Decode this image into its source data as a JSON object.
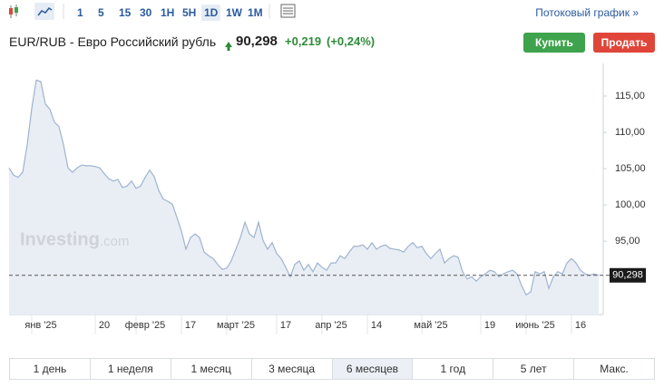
{
  "toolbar": {
    "intervals": [
      "1",
      "5",
      "15",
      "30",
      "1H",
      "5H",
      "1D",
      "1W",
      "1M"
    ],
    "selected_interval": 6,
    "streaming": "Потоковый график »"
  },
  "header": {
    "symbol": "EUR/RUB - Евро Российский рубль",
    "price": "90,298",
    "change": "+0,219",
    "change_pct": "(+0,24%)",
    "buy": "Купить",
    "sell": "Продать"
  },
  "chart_data": {
    "type": "area",
    "watermark_main": "Investing",
    "watermark_suffix": ".com",
    "categories": [
      null,
      null,
      null,
      null,
      null,
      null,
      null,
      "янв '25",
      null,
      null,
      null,
      null,
      null,
      null,
      null,
      null,
      null,
      null,
      null,
      null,
      null,
      "20",
      null,
      null,
      null,
      null,
      null,
      null,
      null,
      null,
      "февр '25",
      null,
      null,
      null,
      null,
      null,
      null,
      null,
      null,
      null,
      "17",
      null,
      null,
      null,
      null,
      null,
      null,
      null,
      null,
      null,
      "март '25",
      null,
      null,
      null,
      null,
      null,
      null,
      null,
      null,
      null,
      null,
      "17",
      null,
      null,
      null,
      null,
      null,
      null,
      null,
      null,
      null,
      "апр '25",
      null,
      null,
      null,
      null,
      null,
      null,
      null,
      null,
      null,
      "14",
      null,
      null,
      null,
      null,
      null,
      null,
      null,
      null,
      null,
      null,
      null,
      "май '25",
      null,
      null,
      null,
      null,
      null,
      null,
      null,
      null,
      null,
      null,
      null,
      null,
      "19",
      null,
      null,
      null,
      null,
      null,
      null,
      null,
      null,
      null,
      "июнь '25",
      null,
      null,
      null,
      null,
      null,
      null,
      null,
      null,
      null,
      "16",
      null,
      null,
      null,
      null
    ],
    "values": [
      105.1,
      104.1,
      103.8,
      104.5,
      108.3,
      113.3,
      117.2,
      117.0,
      113.9,
      113.2,
      111.4,
      110.8,
      108.3,
      105.1,
      104.5,
      105.1,
      105.5,
      105.4,
      105.4,
      105.3,
      105.1,
      104.3,
      103.6,
      103.3,
      103.5,
      102.4,
      102.6,
      103.3,
      102.3,
      102.6,
      103.8,
      104.8,
      103.9,
      102.0,
      100.8,
      100.5,
      100.1,
      98.3,
      96.4,
      93.9,
      95.5,
      96.0,
      95.5,
      93.5,
      93.0,
      92.6,
      91.8,
      91.1,
      91.3,
      92.3,
      93.9,
      95.5,
      97.6,
      96.0,
      95.5,
      97.6,
      95.1,
      93.9,
      94.8,
      93.3,
      92.6,
      91.4,
      90.1,
      91.8,
      92.3,
      91.0,
      91.8,
      90.8,
      92.0,
      91.4,
      91.0,
      92.0,
      92.0,
      93.0,
      92.6,
      93.5,
      94.3,
      94.3,
      94.5,
      93.9,
      94.8,
      93.9,
      94.3,
      94.5,
      94.0,
      93.9,
      93.8,
      93.5,
      94.3,
      94.8,
      94.1,
      94.3,
      93.3,
      92.6,
      93.3,
      93.9,
      92.0,
      92.6,
      93.0,
      92.8,
      90.8,
      89.8,
      90.1,
      89.5,
      90.1,
      90.5,
      91.0,
      90.8,
      90.1,
      90.5,
      90.8,
      91.0,
      90.5,
      88.9,
      87.6,
      88.0,
      90.8,
      90.5,
      90.8,
      88.5,
      90.1,
      90.8,
      90.5,
      92.0,
      92.6,
      92.0,
      91.0,
      90.5,
      90.3,
      90.5,
      90.298
    ],
    "color": "#9fb3cf",
    "fill": "#e9eef5",
    "ylim": [
      84.9,
      119.5
    ],
    "yticks": [
      {
        "value": 95,
        "label": "95,00"
      },
      {
        "value": 100,
        "label": "100,00"
      },
      {
        "value": 105,
        "label": "105,00"
      },
      {
        "value": 110,
        "label": "110,00"
      },
      {
        "value": 115,
        "label": "115,00"
      }
    ],
    "price_line": {
      "value": 90.298,
      "label": "90,298"
    },
    "grid": false
  },
  "ranges": [
    "1 день",
    "1 неделя",
    "1 месяц",
    "3 месяца",
    "6 месяцев",
    "1 год",
    "5 лет",
    "Макс."
  ],
  "selected_range": 4
}
